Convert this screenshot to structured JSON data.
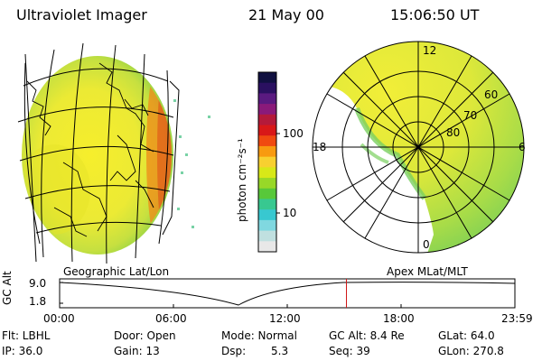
{
  "header": {
    "title": "Ultraviolet Imager",
    "date": "21 May 00",
    "time": "15:06:50 UT"
  },
  "colorbar": {
    "unit_label": "photon cm⁻²s⁻¹",
    "ticks": [
      "100",
      "10"
    ],
    "colors": [
      "#101040",
      "#2a1060",
      "#5a1a80",
      "#8a1a7a",
      "#b41a3a",
      "#d81818",
      "#f04a10",
      "#f89a10",
      "#f8d030",
      "#d8e818",
      "#98d828",
      "#58c83a",
      "#38c890",
      "#38c8d0",
      "#80d8e0",
      "#c0e0e0",
      "#e8e8e8"
    ]
  },
  "panels": {
    "left_label": "Geographic Lat/Lon",
    "right_label": "Apex MLat/MLT",
    "polar_labels": {
      "top": "12",
      "left": "18",
      "right": "6",
      "bottom": "0",
      "lat60": "60",
      "lat70": "70",
      "lat80": "80"
    }
  },
  "timeline": {
    "ylabel": "GC Alt",
    "y_ticks": [
      "9.0",
      "1.8"
    ],
    "x_ticks": [
      "00:00",
      "06:00",
      "12:00",
      "18:00",
      "23:59"
    ],
    "current_time_fraction": 0.63
  },
  "footer": {
    "filter": "Flt: LBHL",
    "ip": "IP: 36.0",
    "door": "Door: Open",
    "gain": "Gain: 13",
    "mode": "Mode: Normal",
    "dsp_label": "Dsp:",
    "dsp_value": "5.3",
    "gc_alt": "GC Alt: 8.4 Re",
    "seq": "Seq: 39",
    "glat": "GLat:  64.0",
    "glon": "GLon: 270.8"
  }
}
